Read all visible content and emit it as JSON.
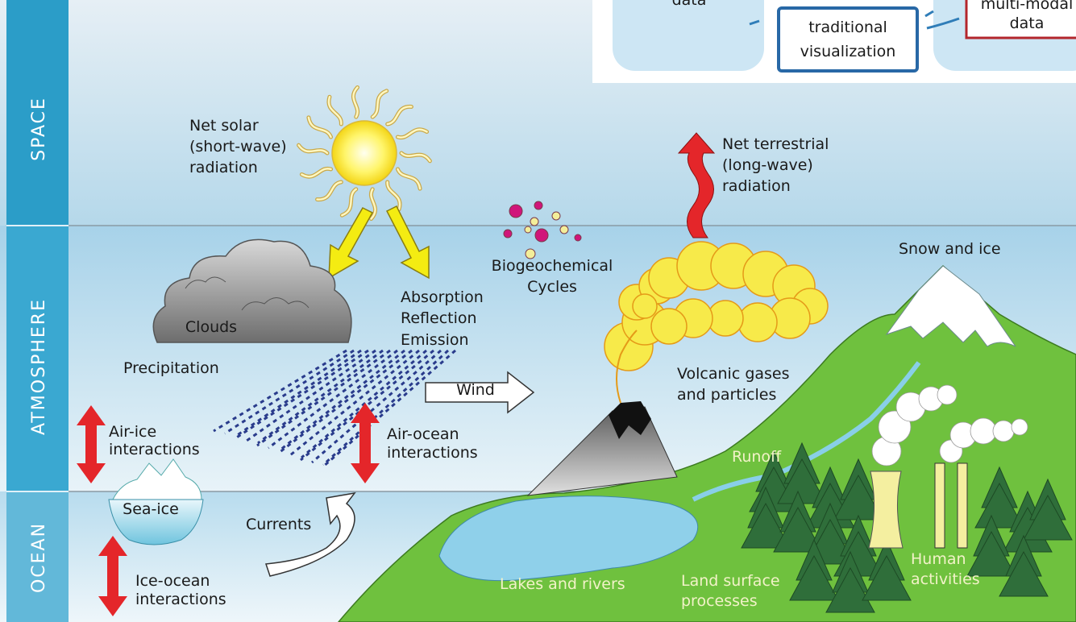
{
  "bands": [
    "SPACE",
    "ATMOSPHERE",
    "OCEAN"
  ],
  "labels": [
    {
      "lines": [
        "Net solar",
        "(short-wave)",
        "radiation"
      ]
    },
    {
      "lines": [
        "Net terrestrial",
        "(long-wave)",
        "radiation"
      ]
    },
    {
      "lines": [
        "Biogeochemical",
        "Cycles"
      ]
    },
    {
      "lines": [
        "Snow and ice"
      ]
    },
    {
      "lines": [
        "Clouds"
      ]
    },
    {
      "lines": [
        "Precipitation"
      ]
    },
    {
      "lines": [
        "Absorption",
        "Reflection",
        "Emission"
      ]
    },
    {
      "lines": [
        "Wind"
      ]
    },
    {
      "lines": [
        "Volcanic gases",
        "and particles"
      ]
    },
    {
      "lines": [
        "Air-ice",
        "interactions"
      ]
    },
    {
      "lines": [
        "Air-ocean",
        "interactions"
      ]
    },
    {
      "lines": [
        "Sea-ice"
      ]
    },
    {
      "lines": [
        "Currents"
      ]
    },
    {
      "lines": [
        "Runoff"
      ]
    },
    {
      "lines": [
        "Ice-ocean",
        "interactions"
      ]
    },
    {
      "lines": [
        "Lakes and rivers"
      ]
    },
    {
      "lines": [
        "Land surface",
        "processes"
      ]
    },
    {
      "lines": [
        "Human",
        "activities"
      ]
    }
  ],
  "inset": {
    "left": "data",
    "middle": [
      "traditional",
      "visualization"
    ],
    "right": [
      "multi-modal",
      "data"
    ]
  }
}
